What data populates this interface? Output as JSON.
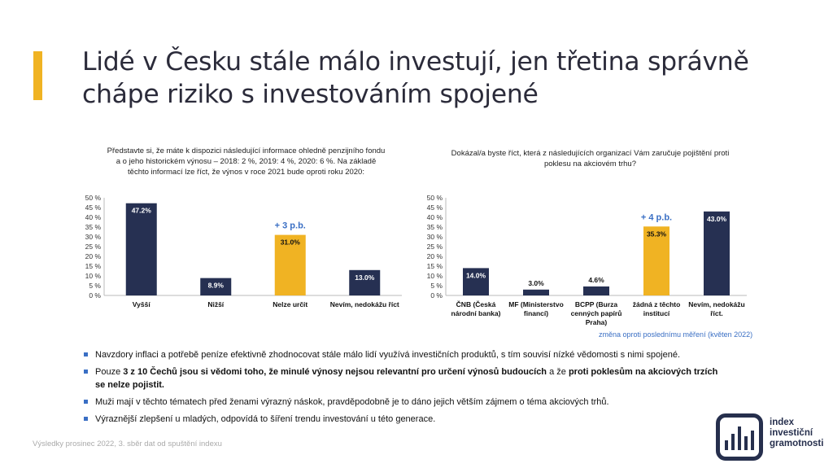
{
  "title": "Lidé v Česku stále málo investují, jen třetina správně chápe riziko s investováním spojené",
  "colors": {
    "navy": "#263052",
    "highlight": "#f0b323",
    "blue": "#3a6fc4"
  },
  "chart_data": [
    {
      "type": "bar",
      "title": "Představte si, že máte k dispozici následující informace ohledně penzijního fondu a o jeho historickém výnosu – 2018: 2 %, 2019: 4 %, 2020: 6 %. Na základě těchto informací lze říct, že výnos v roce 2021 bude oproti roku 2020:",
      "categories": [
        "Vyšší",
        "Nižší",
        "Nelze určit",
        "Nevím, nedokážu říct"
      ],
      "values": [
        47.2,
        8.9,
        31.0,
        13.0
      ],
      "data_labels": [
        "47.2%",
        "8.9%",
        "31.0%",
        "13.0%"
      ],
      "highlight_index": 2,
      "change_label": "+ 3 p.b.",
      "ylim": [
        0,
        50
      ],
      "yticks": [
        "0 %",
        "5 %",
        "10 %",
        "15 %",
        "20 %",
        "25 %",
        "30 %",
        "35 %",
        "40 %",
        "45 %",
        "50 %"
      ],
      "grid": false
    },
    {
      "type": "bar",
      "title": "Dokázal/a byste říct, která z následujících organizací Vám zaručuje pojištění proti poklesu na akciovém trhu?",
      "categories": [
        [
          "ČNB (Česká",
          "národní banka)"
        ],
        [
          "MF (Ministerstvo",
          "financí)"
        ],
        [
          "BCPP (Burza",
          "cenných papírů",
          "Praha)"
        ],
        [
          "žádná z těchto",
          "institucí"
        ],
        [
          "Nevím, nedokážu",
          "říct."
        ]
      ],
      "values": [
        14.0,
        3.0,
        4.6,
        35.3,
        43.0
      ],
      "data_labels": [
        "14.0%",
        "3.0%",
        "4.6%",
        "35.3%",
        "43.0%"
      ],
      "highlight_index": 3,
      "change_label": "+ 4 p.b.",
      "ylim": [
        0,
        50
      ],
      "yticks": [
        "0 %",
        "5 %",
        "10 %",
        "15 %",
        "20 %",
        "25 %",
        "30 %",
        "35 %",
        "40 %",
        "45 %",
        "50 %"
      ],
      "grid": false
    }
  ],
  "note": "změna oproti poslednímu měření (květen 2022)",
  "bullets": [
    [
      {
        "t": "Navzdory inflaci a potřebě peníze efektivně zhodnocovat stále málo lidí využívá investičních produktů, s tím souvisí nízké vědomosti s nimi spojené.",
        "b": false
      }
    ],
    [
      {
        "t": "Pouze ",
        "b": false
      },
      {
        "t": "3 z 10 Čechů jsou si vědomi toho, že minulé výnosy nejsou relevantní pro určení výnosů budoucích",
        "b": true
      },
      {
        "t": " a že ",
        "b": false
      },
      {
        "t": "proti poklesům na akciových trzích se nelze pojistit.",
        "b": true
      }
    ],
    [
      {
        "t": "Muži mají v těchto tématech před ženami výrazný náskok, pravděpodobně je to dáno jejich větším zájmem o téma akciových trhů.",
        "b": false
      }
    ],
    [
      {
        "t": "Výraznější zlepšení u mladých, odpovídá to šíření trendu investování u této generace.",
        "b": false
      }
    ]
  ],
  "footer": "Výsledky prosinec 2022, 3. sběr dat od spuštění indexu",
  "logo": {
    "line1": "index",
    "line2": "investiční",
    "line3": "gramotnosti",
    "bars": [
      0.35,
      0.6,
      0.85,
      0.5,
      0.7
    ]
  }
}
